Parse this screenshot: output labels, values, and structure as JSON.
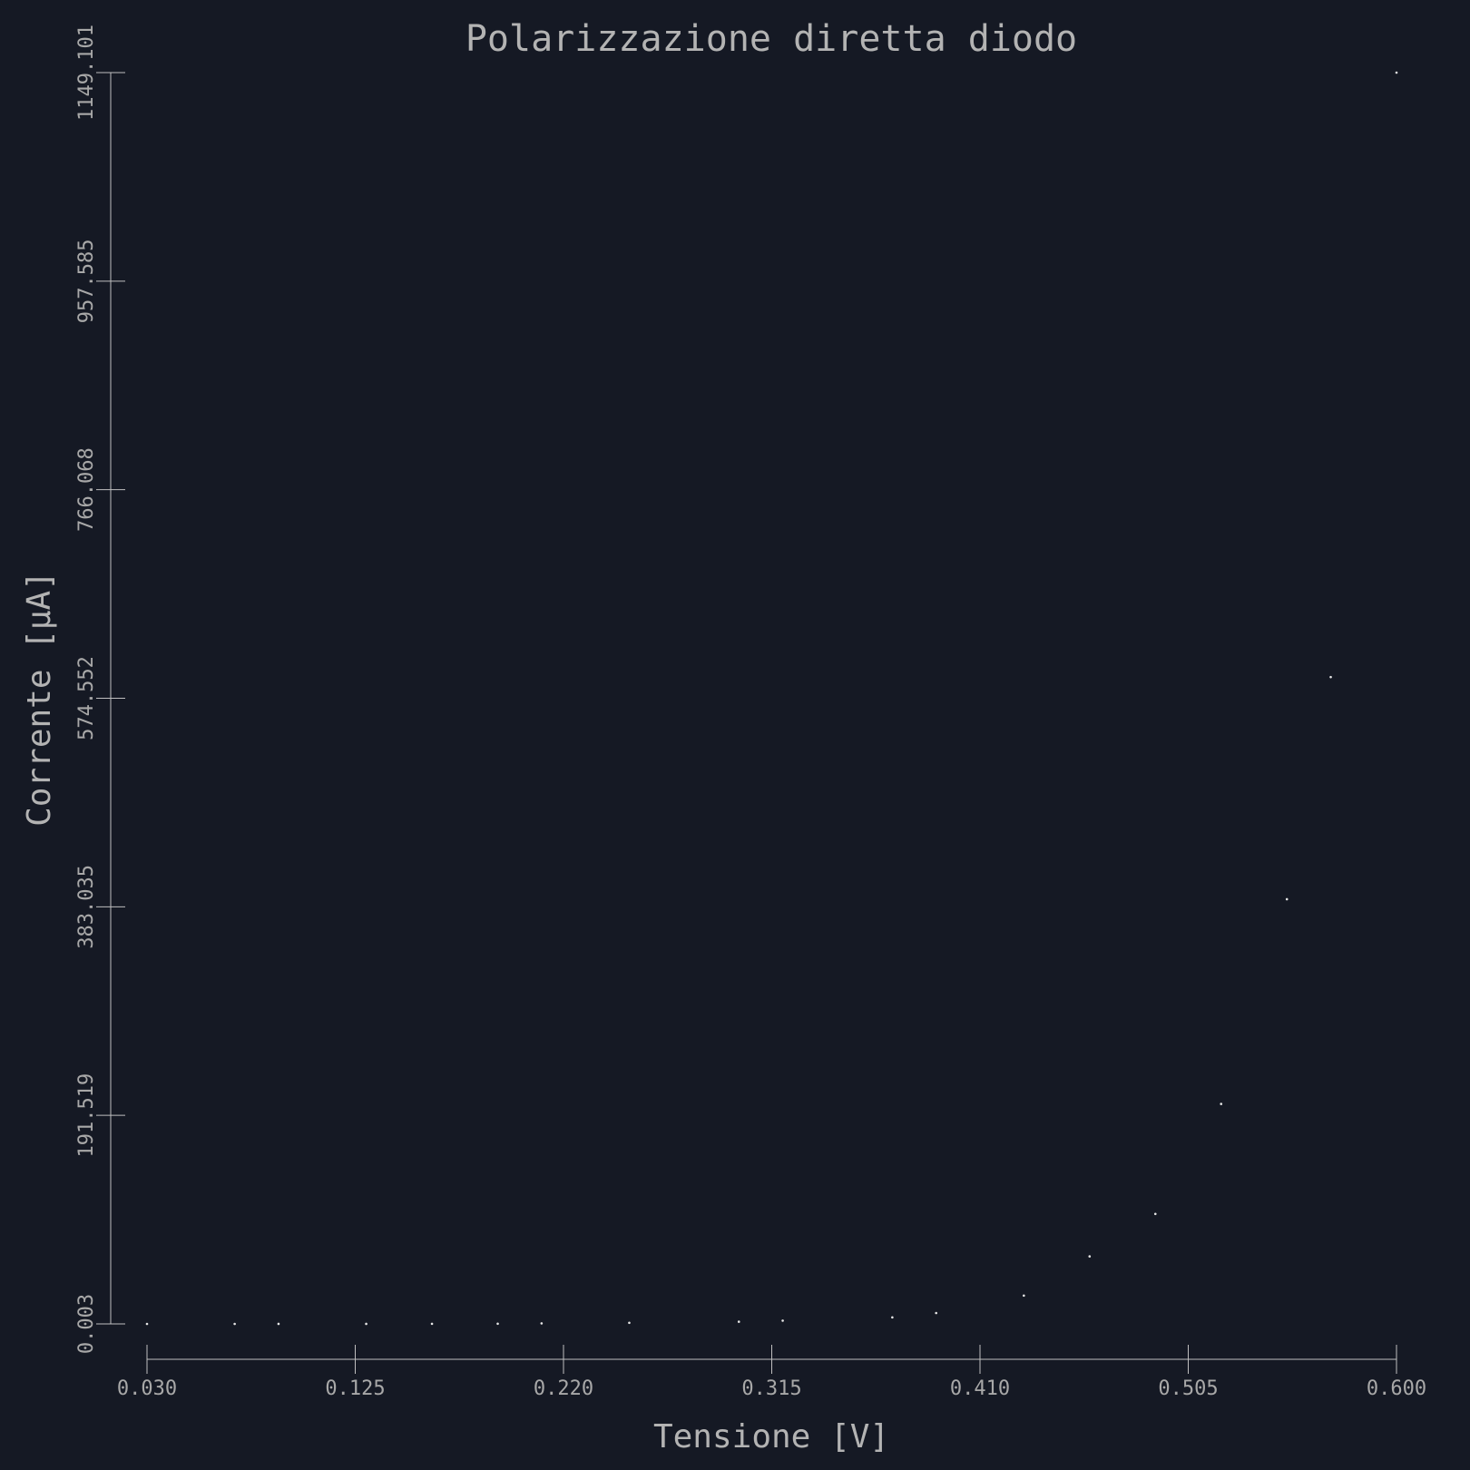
{
  "chart_data": {
    "type": "scatter",
    "title": "Polarizzazione diretta diodo",
    "xlabel": "Tensione [V]",
    "ylabel": "Corrente [µA]",
    "xlim": [
      0.03,
      0.6
    ],
    "ylim": [
      0.003,
      1149.101
    ],
    "xticks": [
      "0.030",
      "0.125",
      "0.220",
      "0.315",
      "0.410",
      "0.505",
      "0.600"
    ],
    "yticks": [
      "0.003",
      "191.519",
      "383.035",
      "574.552",
      "766.068",
      "957.585",
      "1149.101"
    ],
    "grid": false,
    "colors": {
      "background": "#151924",
      "axis": "#bfbfbf",
      "text": "#b3b3b3",
      "points": "#e6e6e6"
    },
    "points": [
      {
        "x": 0.03,
        "y": 0.003
      },
      {
        "x": 0.07,
        "y": 0.01
      },
      {
        "x": 0.09,
        "y": 0.02
      },
      {
        "x": 0.13,
        "y": 0.05
      },
      {
        "x": 0.16,
        "y": 0.1
      },
      {
        "x": 0.19,
        "y": 0.2
      },
      {
        "x": 0.21,
        "y": 0.5
      },
      {
        "x": 0.25,
        "y": 1.0
      },
      {
        "x": 0.3,
        "y": 2.0
      },
      {
        "x": 0.32,
        "y": 3.0
      },
      {
        "x": 0.37,
        "y": 6.0
      },
      {
        "x": 0.39,
        "y": 10.0
      },
      {
        "x": 0.43,
        "y": 26.0
      },
      {
        "x": 0.46,
        "y": 62.0
      },
      {
        "x": 0.49,
        "y": 101.0
      },
      {
        "x": 0.52,
        "y": 202.0
      },
      {
        "x": 0.55,
        "y": 390.0
      },
      {
        "x": 0.57,
        "y": 594.0
      },
      {
        "x": 0.6,
        "y": 1149.101
      }
    ]
  }
}
